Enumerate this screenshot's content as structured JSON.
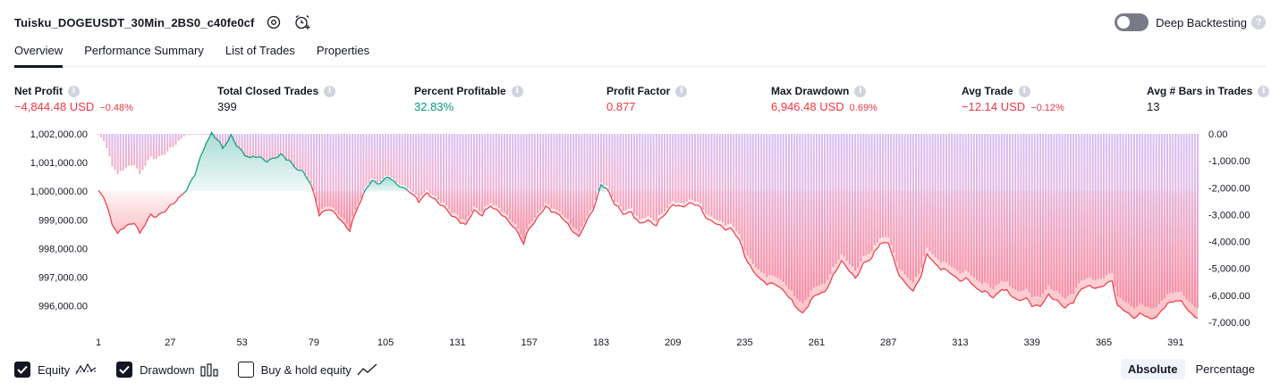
{
  "header": {
    "strategy_name": "Tuisku_DOGEUSDT_30Min_2BS0_c40fe0cf",
    "settings_icon": "gear-icon",
    "add_alert_icon": "alarm-clock-plus-icon",
    "deep_backtesting_label": "Deep Backtesting",
    "deep_backtesting_on": false,
    "help_icon": "question-icon"
  },
  "tabs": [
    {
      "label": "Overview",
      "active": true
    },
    {
      "label": "Performance Summary",
      "active": false
    },
    {
      "label": "List of Trades",
      "active": false
    },
    {
      "label": "Properties",
      "active": false
    }
  ],
  "stats": [
    {
      "label": "Net Profit",
      "value": "−4,844.48 USD",
      "pct": "−0.48%",
      "tone": "red"
    },
    {
      "label": "Total Closed Trades",
      "value": "399",
      "pct": "",
      "tone": "dark"
    },
    {
      "label": "Percent Profitable",
      "value": "32.83%",
      "pct": "",
      "tone": "green"
    },
    {
      "label": "Profit Factor",
      "value": "0.877",
      "pct": "",
      "tone": "red"
    },
    {
      "label": "Max Drawdown",
      "value": "6,946.48 USD",
      "pct": "0.69%",
      "tone": "red"
    },
    {
      "label": "Avg Trade",
      "value": "−12.14 USD",
      "pct": "−0.12%",
      "tone": "red"
    },
    {
      "label": "Avg # Bars in Trades",
      "value": "13",
      "pct": "",
      "tone": "dark"
    }
  ],
  "chart_data": {
    "type": "area",
    "title": "",
    "x_tick_labels": [
      "1",
      "27",
      "53",
      "79",
      "105",
      "131",
      "157",
      "183",
      "209",
      "235",
      "261",
      "287",
      "313",
      "339",
      "365",
      "391"
    ],
    "x_range": [
      1,
      399
    ],
    "left_axis": {
      "label": "Equity",
      "ylim": [
        995400,
        1002000
      ],
      "tick_labels": [
        "1,002,000.00",
        "1,001,000.00",
        "1,000,000.00",
        "999,000.00",
        "998,000.00",
        "997,000.00",
        "996,000.00"
      ]
    },
    "right_axis": {
      "label": "Drawdown",
      "ylim": [
        -7000,
        0
      ],
      "tick_labels": [
        "0.00",
        "-1,000.00",
        "-2,000.00",
        "-3,000.00",
        "-4,000.00",
        "-5,000.00",
        "-6,000.00",
        "-7,000.00"
      ]
    },
    "baseline": 1000000,
    "equity_anchors": [
      [
        1,
        1000000
      ],
      [
        3,
        999800
      ],
      [
        6,
        998900
      ],
      [
        8,
        998500
      ],
      [
        11,
        998800
      ],
      [
        14,
        998900
      ],
      [
        16,
        998500
      ],
      [
        18,
        998900
      ],
      [
        20,
        999200
      ],
      [
        22,
        999100
      ],
      [
        25,
        999300
      ],
      [
        27,
        999500
      ],
      [
        30,
        999700
      ],
      [
        33,
        1000100
      ],
      [
        36,
        1000600
      ],
      [
        38,
        1001200
      ],
      [
        40,
        1001700
      ],
      [
        42,
        1002000
      ],
      [
        44,
        1001800
      ],
      [
        46,
        1001500
      ],
      [
        49,
        1001950
      ],
      [
        51,
        1001600
      ],
      [
        53,
        1001400
      ],
      [
        56,
        1001150
      ],
      [
        59,
        1001200
      ],
      [
        62,
        1001050
      ],
      [
        65,
        1001150
      ],
      [
        67,
        1001300
      ],
      [
        70,
        1001100
      ],
      [
        72,
        1000800
      ],
      [
        75,
        1000700
      ],
      [
        77,
        1000400
      ],
      [
        79,
        999900
      ],
      [
        81,
        999200
      ],
      [
        84,
        999400
      ],
      [
        87,
        999200
      ],
      [
        90,
        998850
      ],
      [
        92,
        998600
      ],
      [
        95,
        999500
      ],
      [
        98,
        1000100
      ],
      [
        100,
        1000350
      ],
      [
        103,
        1000300
      ],
      [
        106,
        1000500
      ],
      [
        108,
        1000300
      ],
      [
        111,
        1000150
      ],
      [
        114,
        999950
      ],
      [
        117,
        999700
      ],
      [
        120,
        999900
      ],
      [
        123,
        999700
      ],
      [
        126,
        999450
      ],
      [
        129,
        999150
      ],
      [
        131,
        999050
      ],
      [
        134,
        998800
      ],
      [
        137,
        999350
      ],
      [
        140,
        999150
      ],
      [
        143,
        999500
      ],
      [
        146,
        999300
      ],
      [
        149,
        999000
      ],
      [
        152,
        998700
      ],
      [
        155,
        998150
      ],
      [
        157,
        998700
      ],
      [
        160,
        999100
      ],
      [
        163,
        999450
      ],
      [
        166,
        999300
      ],
      [
        169,
        999050
      ],
      [
        172,
        998700
      ],
      [
        175,
        998400
      ],
      [
        178,
        999000
      ],
      [
        181,
        999600
      ],
      [
        183,
        1000200
      ],
      [
        185,
        1000100
      ],
      [
        188,
        999550
      ],
      [
        191,
        999200
      ],
      [
        194,
        999300
      ],
      [
        197,
        998850
      ],
      [
        200,
        999000
      ],
      [
        203,
        998800
      ],
      [
        206,
        999200
      ],
      [
        209,
        999550
      ],
      [
        212,
        999450
      ],
      [
        215,
        999600
      ],
      [
        218,
        999500
      ],
      [
        221,
        999100
      ],
      [
        224,
        998900
      ],
      [
        227,
        998750
      ],
      [
        230,
        998700
      ],
      [
        233,
        998300
      ],
      [
        235,
        997750
      ],
      [
        238,
        997200
      ],
      [
        241,
        996900
      ],
      [
        244,
        996800
      ],
      [
        247,
        996700
      ],
      [
        250,
        996450
      ],
      [
        253,
        996000
      ],
      [
        256,
        995750
      ],
      [
        259,
        996200
      ],
      [
        261,
        996400
      ],
      [
        264,
        996500
      ],
      [
        267,
        997000
      ],
      [
        270,
        997600
      ],
      [
        272,
        997350
      ],
      [
        275,
        996950
      ],
      [
        278,
        997500
      ],
      [
        281,
        997650
      ],
      [
        284,
        998200
      ],
      [
        287,
        998200
      ],
      [
        290,
        997300
      ],
      [
        293,
        996800
      ],
      [
        296,
        996500
      ],
      [
        299,
        997100
      ],
      [
        301,
        997800
      ],
      [
        304,
        997450
      ],
      [
        307,
        997300
      ],
      [
        310,
        997100
      ],
      [
        313,
        996900
      ],
      [
        316,
        996900
      ],
      [
        319,
        996600
      ],
      [
        322,
        996500
      ],
      [
        325,
        996300
      ],
      [
        328,
        996600
      ],
      [
        331,
        996400
      ],
      [
        334,
        996200
      ],
      [
        337,
        996250
      ],
      [
        339,
        996050
      ],
      [
        342,
        996000
      ],
      [
        345,
        996350
      ],
      [
        348,
        996200
      ],
      [
        351,
        995900
      ],
      [
        354,
        996200
      ],
      [
        357,
        996600
      ],
      [
        360,
        996700
      ],
      [
        363,
        996600
      ],
      [
        365,
        996700
      ],
      [
        368,
        996900
      ],
      [
        370,
        996000
      ],
      [
        373,
        995800
      ],
      [
        376,
        995600
      ],
      [
        379,
        995700
      ],
      [
        382,
        995550
      ],
      [
        385,
        995700
      ],
      [
        388,
        996100
      ],
      [
        391,
        996200
      ],
      [
        394,
        996050
      ],
      [
        396,
        995800
      ],
      [
        399,
        995550
      ]
    ],
    "colors": {
      "profit_line": "#089981",
      "loss_line": "#f23645",
      "profit_fill": "#089981",
      "loss_fill": "#f23645",
      "drawdown_bar": "#c9a8f0",
      "drawdown_bar_deep": "#f39ab9"
    }
  },
  "legend": [
    {
      "label": "Equity",
      "checked": true,
      "icon": "equity-line-icon"
    },
    {
      "label": "Drawdown",
      "checked": true,
      "icon": "drawdown-bars-icon"
    },
    {
      "label": "Buy & hold equity",
      "checked": false,
      "icon": "buy-hold-line-icon"
    }
  ],
  "modes": [
    {
      "label": "Absolute",
      "active": true
    },
    {
      "label": "Percentage",
      "active": false
    }
  ]
}
